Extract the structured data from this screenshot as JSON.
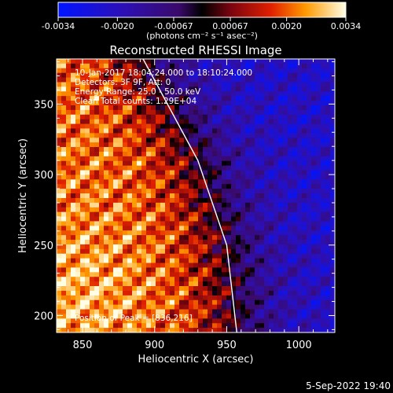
{
  "chart_data": {
    "type": "heatmap",
    "title": "Reconstructed RHESSI Image",
    "xlabel": "Heliocentric X (arcsec)",
    "ylabel": "Heliocentric Y (arcsec)",
    "xlim": [
      832,
      1025
    ],
    "ylim": [
      188,
      382
    ],
    "xticks": [
      850,
      900,
      950,
      1000
    ],
    "yticks": [
      200,
      250,
      300,
      350
    ],
    "colorbar": {
      "ticks": [
        "-0.0034",
        "-0.0020",
        "-0.00067",
        "0.00067",
        "0.0020",
        "0.0034"
      ],
      "range": [
        -0.0034,
        0.0034
      ],
      "unit_label": "(photons cm⁻² s⁻¹ asec⁻²)"
    },
    "annotations": [
      "10-Jan-2017 18:04:24.000 to 18:10:24.000",
      "Detectors: 3F 9F, Att: 0",
      "Energy Range: 25.0 - 50.0 keV",
      "Clean    Total counts: 1.29E+04"
    ],
    "peak_label": "Position of Peak = [836,216]",
    "limb": [
      [
        892,
        382
      ],
      [
        930,
        310
      ],
      [
        950,
        250
      ],
      [
        957,
        188
      ]
    ]
  },
  "footer": {
    "timestamp": "5-Sep-2022 19:40"
  }
}
